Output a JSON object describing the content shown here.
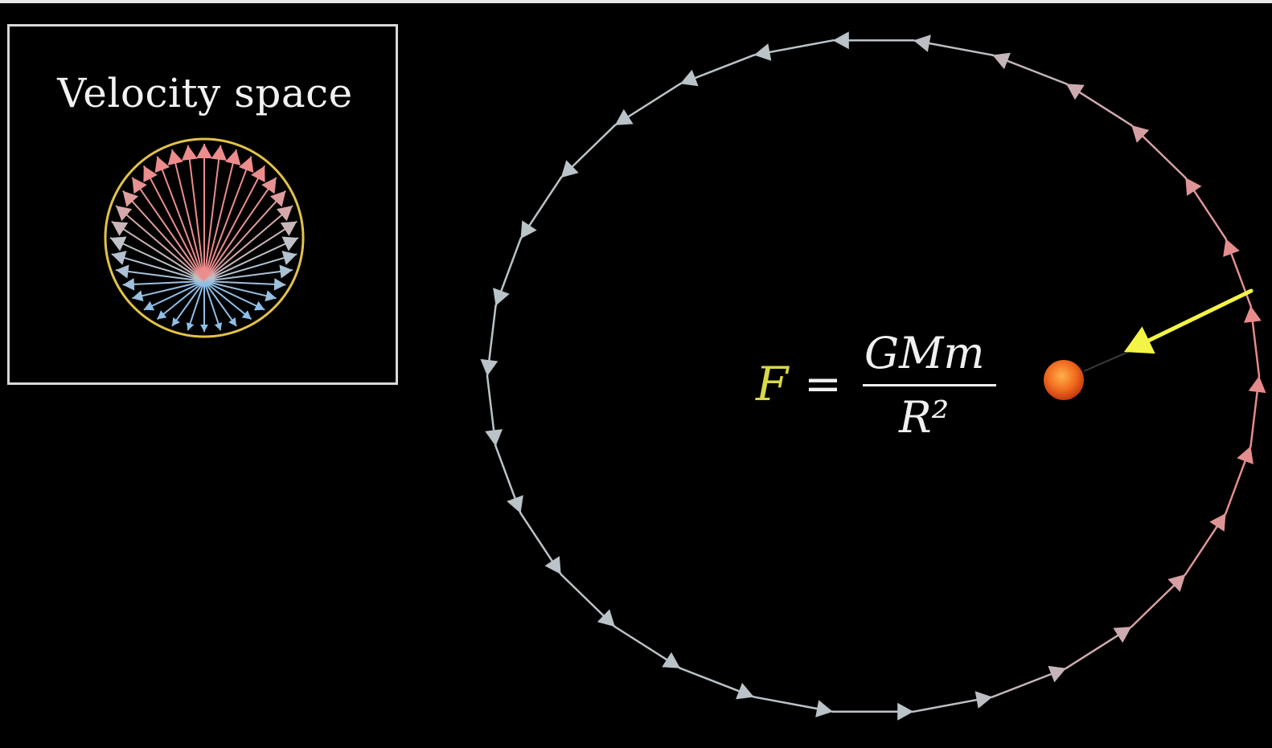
{
  "inset": {
    "title": "Velocity space",
    "circle_color": "#e3c24a",
    "vector_count": 36
  },
  "formula": {
    "force_symbol": "F",
    "equals": "=",
    "numerator": "GMm",
    "denominator": "R²",
    "force_color": "#d8d84a"
  },
  "orbit": {
    "arrow_count": 30,
    "colors": {
      "slow": "#b9c3c8",
      "fast": "#e8898a",
      "force_arrow": "#f4f447",
      "sun": "#ef6a1e"
    }
  }
}
